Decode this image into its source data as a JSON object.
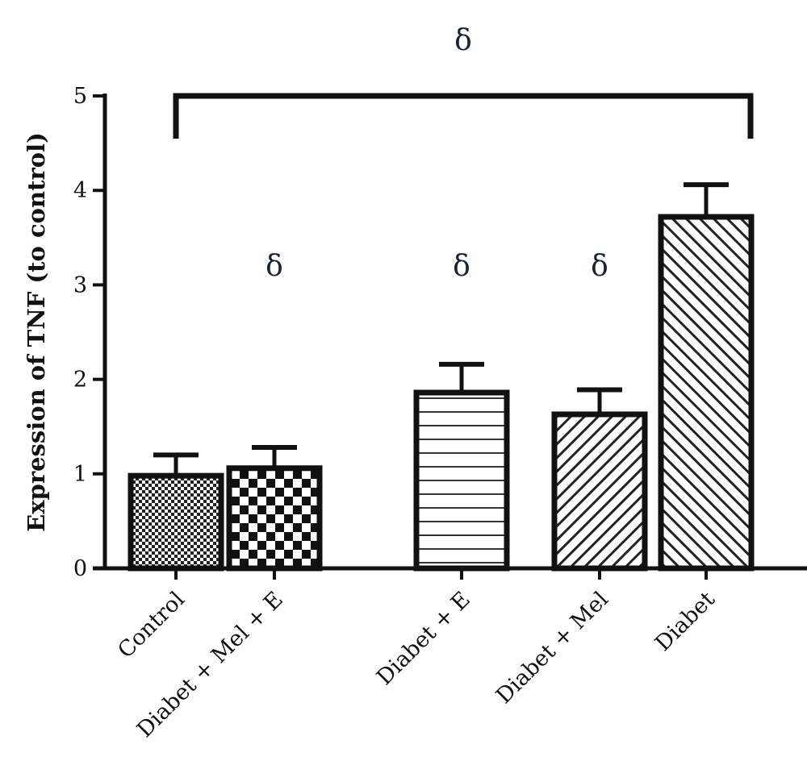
{
  "chart_data": {
    "type": "bar",
    "title": "",
    "xlabel": "",
    "ylabel": "Expression of TNF (to control)",
    "ylim": [
      0,
      5
    ],
    "yticks": [
      "0",
      "1",
      "2",
      "3",
      "4",
      "5"
    ],
    "grid": false,
    "categories": [
      "Control",
      "Diabet + Mel + E",
      "Diabet + E",
      "Diabet + Mel",
      "Diabet"
    ],
    "values": [
      0.98,
      1.06,
      1.86,
      1.63,
      3.72
    ],
    "error_upper": [
      1.2,
      1.28,
      2.16,
      1.89,
      4.06
    ],
    "fill_patterns": [
      "fine-checker",
      "coarse-checker",
      "horizontal-lines",
      "diagonal-forward",
      "diagonal-backward"
    ],
    "annotations": [
      {
        "text": "δ",
        "category": "Diabet + Mel + E"
      },
      {
        "text": "δ",
        "category": "Diabet + E"
      },
      {
        "text": "δ",
        "category": "Diabet + Mel"
      }
    ],
    "bracket": {
      "from": "Control",
      "to": "Diabet",
      "text": "δ"
    },
    "colors": {
      "bar_edge": "#111111",
      "annotation": "#1a2233"
    }
  }
}
